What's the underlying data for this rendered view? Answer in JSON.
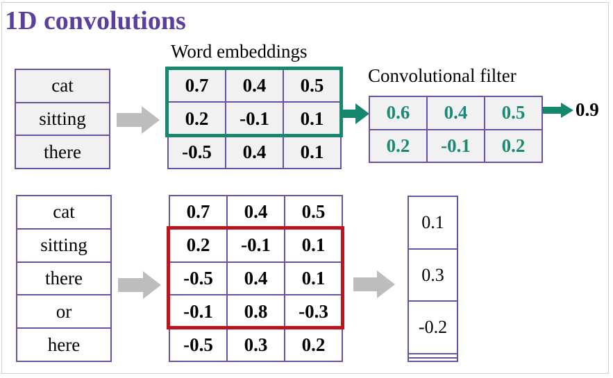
{
  "title": "1D convolutions",
  "top": {
    "embeddings_label": "Word embeddings",
    "filter_label": "Convolutional filter",
    "words": [
      "cat",
      "sitting",
      "there"
    ],
    "embeddings": [
      [
        "0.7",
        "0.4",
        "0.5"
      ],
      [
        "0.2",
        "-0.1",
        "0.1"
      ],
      [
        "-0.5",
        "0.4",
        "0.1"
      ]
    ],
    "filter": [
      [
        "0.6",
        "0.4",
        "0.5"
      ],
      [
        "0.2",
        "-0.1",
        "0.2"
      ]
    ],
    "result": "0.9"
  },
  "bottom": {
    "words": [
      "cat",
      "sitting",
      "there",
      "or",
      "here"
    ],
    "embeddings": [
      [
        "0.7",
        "0.4",
        "0.5"
      ],
      [
        "0.2",
        "-0.1",
        "0.1"
      ],
      [
        "-0.5",
        "0.4",
        "0.1"
      ],
      [
        "-0.1",
        "0.8",
        "-0.3"
      ],
      [
        "-0.5",
        "0.3",
        "0.2"
      ]
    ],
    "outputs": [
      "0.1",
      "0.3",
      "-0.2",
      "",
      ""
    ]
  },
  "colors": {
    "title": "#5a3fa0",
    "grid_border": "#6a4fa6",
    "filter_text": "#1a8a76",
    "green_highlight": "#15876f",
    "red_highlight": "#c0141c",
    "grey_arrow": "#bdbdbd",
    "green_arrow": "#15876f"
  }
}
